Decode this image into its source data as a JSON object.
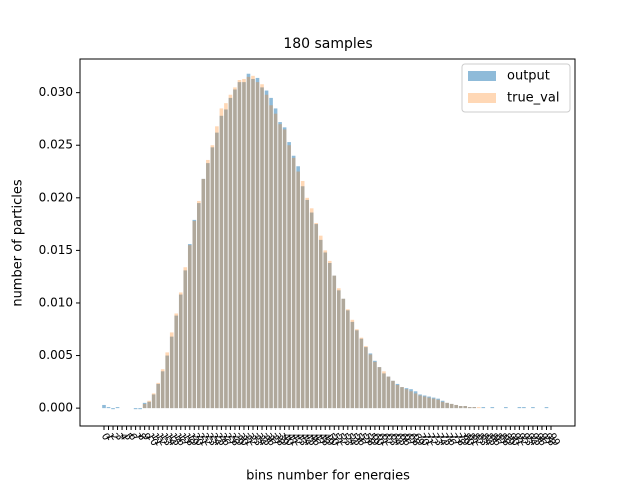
{
  "chart_data": {
    "type": "bar",
    "title": "180 samples",
    "x_label": "bins number for energies",
    "y_label": "number of particles",
    "categories": [
      "0",
      "1",
      "2",
      "3",
      "4",
      "5",
      "6",
      "7",
      "8",
      "9",
      "10",
      "11",
      "12",
      "13",
      "14",
      "15",
      "16",
      "17",
      "18",
      "19",
      "20",
      "21",
      "22",
      "23",
      "24",
      "25",
      "26",
      "27",
      "28",
      "29",
      "30",
      "31",
      "32",
      "33",
      "34",
      "35",
      "36",
      "37",
      "38",
      "39",
      "40",
      "41",
      "42",
      "43",
      "44",
      "45",
      "46",
      "47",
      "48",
      "49",
      "50",
      "51",
      "52",
      "53",
      "54",
      "55",
      "56",
      "57",
      "58",
      "59",
      "60",
      "61",
      "62",
      "63",
      "64",
      "65",
      "66",
      "67",
      "68",
      "69",
      "70",
      "71",
      "72",
      "73",
      "74",
      "75",
      "76",
      "77",
      "78",
      "79",
      "80",
      "81",
      "82",
      "83",
      "84",
      "85",
      "86",
      "87",
      "88",
      "89",
      "90",
      "91",
      "92",
      "93",
      "94",
      "95",
      "96",
      "97",
      "98",
      "99"
    ],
    "series": [
      {
        "name": "output",
        "color": "#1f77b4",
        "opacity": 0.5,
        "values": [
          0.0003,
          0.0001,
          -0.0001,
          0.0001,
          0,
          0,
          0,
          -0.0001,
          -0.0001,
          0.0005,
          0.0006,
          0.0013,
          0.0023,
          0.0035,
          0.005,
          0.0068,
          0.0088,
          0.0108,
          0.0131,
          0.0156,
          0.0179,
          0.0195,
          0.0218,
          0.0233,
          0.0248,
          0.0262,
          0.0278,
          0.0284,
          0.0295,
          0.0303,
          0.031,
          0.031,
          0.0318,
          0.0313,
          0.0314,
          0.0305,
          0.0302,
          0.0295,
          0.0285,
          0.0272,
          0.0267,
          0.0253,
          0.024,
          0.023,
          0.0211,
          0.0198,
          0.0186,
          0.0175,
          0.016,
          0.0148,
          0.0138,
          0.0126,
          0.0112,
          0.0104,
          0.0093,
          0.0082,
          0.0074,
          0.0066,
          0.0058,
          0.0052,
          0.0045,
          0.0039,
          0.0033,
          0.003,
          0.0026,
          0.0023,
          0.002,
          0.0019,
          0.0018,
          0.0016,
          0.0013,
          0.0012,
          0.0011,
          0.001,
          0.0009,
          0.0007,
          0.0005,
          0.0004,
          0.0003,
          0.0002,
          0.0002,
          0.0001,
          0.0001,
          0,
          0.0001,
          0,
          0.0001,
          0,
          0,
          0.0001,
          0,
          0,
          0.0001,
          0.0001,
          0,
          0.0001,
          0,
          0,
          0.0001,
          0
        ]
      },
      {
        "name": "true_val",
        "color": "#ff7f0e",
        "opacity": 0.3,
        "values": [
          0,
          0,
          0,
          0,
          0,
          0,
          0,
          0,
          0,
          0.0004,
          0.0007,
          0.0014,
          0.0024,
          0.0037,
          0.0053,
          0.0072,
          0.009,
          0.011,
          0.0134,
          0.0155,
          0.0178,
          0.0197,
          0.0218,
          0.0236,
          0.025,
          0.0268,
          0.0285,
          0.029,
          0.0298,
          0.0305,
          0.0312,
          0.0313,
          0.0315,
          0.0316,
          0.031,
          0.0308,
          0.0298,
          0.0288,
          0.028,
          0.027,
          0.0265,
          0.025,
          0.0238,
          0.0225,
          0.0216,
          0.02,
          0.019,
          0.0176,
          0.0164,
          0.015,
          0.014,
          0.0126,
          0.0114,
          0.0104,
          0.0094,
          0.0084,
          0.0075,
          0.0067,
          0.0059,
          0.0051,
          0.0044,
          0.0039,
          0.0035,
          0.003,
          0.0026,
          0.0022,
          0.002,
          0.0018,
          0.0016,
          0.0014,
          0.0012,
          0.0011,
          0.001,
          0.0009,
          0.0008,
          0.0006,
          0.0005,
          0.0004,
          0.0003,
          0.0002,
          0.0002,
          0.0001,
          0.0001,
          0.0001,
          0,
          0,
          0,
          0,
          0,
          0,
          0,
          0,
          0,
          0,
          0,
          0,
          0,
          0,
          0,
          0
        ]
      }
    ],
    "ylim": [
      -0.0017,
      0.0332
    ],
    "yticks": [
      {
        "value": 0,
        "label": "0.000"
      },
      {
        "value": 0.005,
        "label": "0.005"
      },
      {
        "value": 0.01,
        "label": "0.010"
      },
      {
        "value": 0.015,
        "label": "0.015"
      },
      {
        "value": 0.02,
        "label": "0.020"
      },
      {
        "value": 0.025,
        "label": "0.025"
      },
      {
        "value": 0.03,
        "label": "0.030"
      }
    ],
    "legend": "upper right",
    "grid": false
  }
}
